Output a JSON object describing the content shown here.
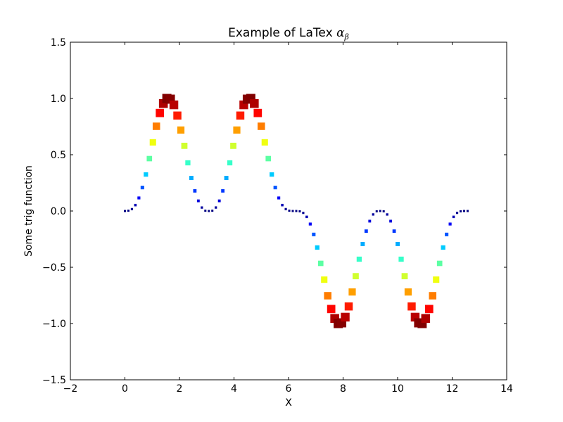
{
  "chart_data": {
    "type": "scatter",
    "title": {
      "text": "Example of LaTex ",
      "math_base": "α",
      "math_sub": "β"
    },
    "xlabel": "X",
    "ylabel": "Some trig function",
    "xlim": [
      -2,
      14
    ],
    "ylim": [
      -1.5,
      1.5
    ],
    "xticks": [
      -2,
      0,
      2,
      4,
      6,
      8,
      10,
      12,
      14
    ],
    "xtick_labels": [
      "−2",
      "0",
      "2",
      "4",
      "6",
      "8",
      "10",
      "12",
      "14"
    ],
    "yticks": [
      -1.5,
      -1.0,
      -0.5,
      0.0,
      0.5,
      1.0,
      1.5
    ],
    "ytick_labels": [
      "−1.5",
      "−1.0",
      "−0.5",
      "0.0",
      "0.5",
      "1.0",
      "1.5"
    ],
    "grid": false,
    "colormap": "jet",
    "marker": "square",
    "marker_size_and_color_encode": "abs(y)",
    "series": [
      {
        "x": [
          0.0,
          0.1282,
          0.2565,
          0.3847,
          0.5129,
          0.6411,
          0.7694,
          0.8976,
          1.0258,
          1.1541,
          1.2823,
          1.4105,
          1.5387,
          1.667,
          1.7952,
          1.9234,
          2.0517,
          2.1799,
          2.3081,
          2.4363,
          2.5646,
          2.6928,
          2.821,
          2.9493,
          3.0775,
          3.2057,
          3.3339,
          3.4622,
          3.5904,
          3.7186,
          3.8468,
          3.9751,
          4.1033,
          4.2315,
          4.3598,
          4.488,
          4.6162,
          4.7444,
          4.8727,
          5.0009,
          5.1291,
          5.2574,
          5.3856,
          5.5138,
          5.642,
          5.7703,
          5.8985,
          6.0267,
          6.1549,
          6.2832,
          6.4114,
          6.5396,
          6.6679,
          6.7961,
          6.9243,
          7.0525,
          7.1808,
          7.309,
          7.4372,
          7.5655,
          7.6937,
          7.8219,
          7.9501,
          8.0784,
          8.2066,
          8.3348,
          8.463,
          8.5913,
          8.7195,
          8.8477,
          8.976,
          9.1042,
          9.2324,
          9.3606,
          9.4889,
          9.6171,
          9.7453,
          9.8736,
          10.0018,
          10.13,
          10.2582,
          10.3865,
          10.5147,
          10.6429,
          10.7711,
          10.8994,
          11.0276,
          11.1558,
          11.2841,
          11.4123,
          11.5405,
          11.6687,
          11.797,
          11.9252,
          12.0534,
          12.1817,
          12.3099,
          12.4381,
          12.5664
        ],
        "y": [
          0.0,
          0.0028,
          0.0167,
          0.0522,
          0.1159,
          0.2085,
          0.3243,
          0.4655,
          0.6101,
          0.7529,
          0.8709,
          0.9549,
          1.0,
          0.9937,
          0.9432,
          0.8482,
          0.7196,
          0.5791,
          0.4281,
          0.2936,
          0.1787,
          0.0902,
          0.0306,
          0.0028,
          0.0,
          0.0028,
          0.0308,
          0.0902,
          0.1787,
          0.2936,
          0.4281,
          0.5791,
          0.7196,
          0.8482,
          0.9432,
          0.9937,
          1.0,
          0.9549,
          0.8709,
          0.7529,
          0.6101,
          0.4655,
          0.3243,
          0.2085,
          0.1159,
          0.0522,
          0.0167,
          0.0028,
          0.0,
          0.0,
          -0.0028,
          -0.0167,
          -0.0522,
          -0.1159,
          -0.2085,
          -0.3243,
          -0.4655,
          -0.6101,
          -0.7529,
          -0.8709,
          -0.9549,
          -1.0,
          -0.9937,
          -0.9432,
          -0.8482,
          -0.7196,
          -0.5791,
          -0.4281,
          -0.2936,
          -0.1787,
          -0.0902,
          -0.0306,
          -0.0028,
          0.0,
          -0.0028,
          -0.0308,
          -0.0902,
          -0.1787,
          -0.2936,
          -0.4281,
          -0.5791,
          -0.7196,
          -0.8482,
          -0.9432,
          -0.9937,
          -1.0,
          -0.9549,
          -0.8709,
          -0.7529,
          -0.6101,
          -0.4655,
          -0.3243,
          -0.2085,
          -0.1159,
          -0.0522,
          -0.0167,
          -0.0028,
          0.0,
          0.0
        ]
      }
    ]
  }
}
